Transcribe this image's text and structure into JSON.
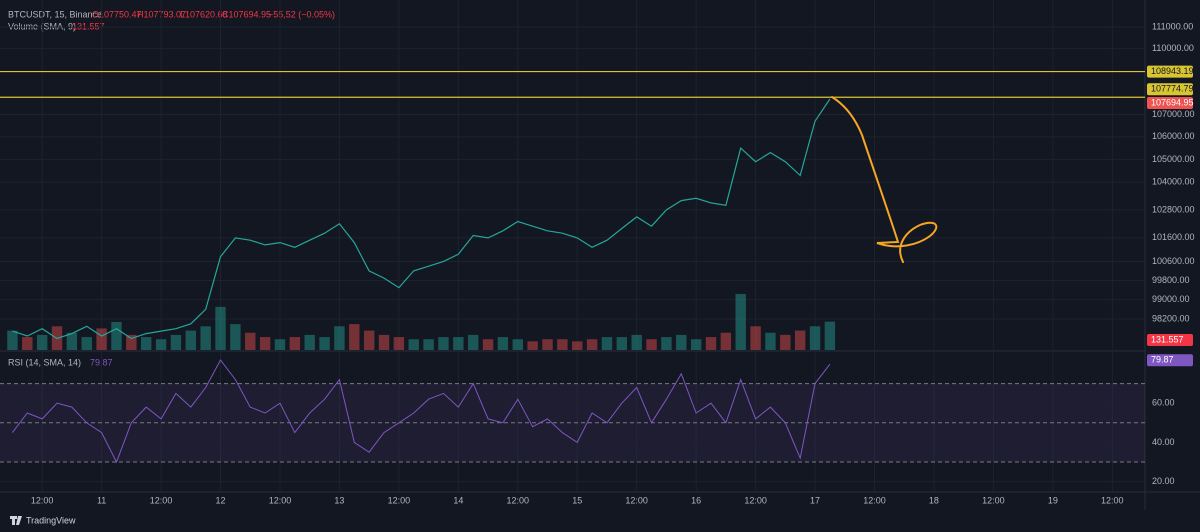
{
  "header": {
    "symbol": "BTCUSDT, 15, Binance",
    "open": "O107750.47",
    "high": "H107793.07",
    "low": "L107620.68",
    "close": "C107694.95",
    "change": "−55,52 (−0.05%)",
    "volume_label": "Volume (SMA, 9)"
  },
  "branding": "TradingView",
  "chart_data": [
    {
      "type": "line",
      "log_scale": true,
      "grid": true,
      "xlim": [
        -0.5,
        76.2
      ],
      "xticks": [
        {
          "value": 2,
          "label": "12:00"
        },
        {
          "value": 6,
          "label": "11"
        },
        {
          "value": 10,
          "label": "12:00"
        },
        {
          "value": 14,
          "label": "12"
        },
        {
          "value": 18,
          "label": "12:00"
        },
        {
          "value": 22,
          "label": "13"
        },
        {
          "value": 26,
          "label": "12:00"
        },
        {
          "value": 30,
          "label": "14"
        },
        {
          "value": 34,
          "label": "12:00"
        },
        {
          "value": 38,
          "label": "15"
        },
        {
          "value": 42,
          "label": "12:00"
        },
        {
          "value": 46,
          "label": "16"
        },
        {
          "value": 50,
          "label": "12:00"
        },
        {
          "value": 54,
          "label": "17"
        },
        {
          "value": 58,
          "label": "12:00"
        },
        {
          "value": 62,
          "label": "18"
        },
        {
          "value": 66,
          "label": "12:00"
        },
        {
          "value": 70,
          "label": "19"
        },
        {
          "value": 74,
          "label": "12:00"
        }
      ],
      "ylim": [
        96930,
        112030
      ],
      "yticks": [
        {
          "value": 111000,
          "label": "111000.00"
        },
        {
          "value": 110000,
          "label": "110000.00"
        },
        {
          "value": 107000,
          "label": "107000.00"
        },
        {
          "value": 106000,
          "label": "106000.00"
        },
        {
          "value": 105000,
          "label": "105000.00"
        },
        {
          "value": 104000,
          "label": "104000.00"
        },
        {
          "value": 102800,
          "label": "102800.00"
        },
        {
          "value": 101600,
          "label": "101600.00"
        },
        {
          "value": 100600,
          "label": "100600.00"
        },
        {
          "value": 99800,
          "label": "99800.00"
        },
        {
          "value": 99000,
          "label": "99000.00"
        },
        {
          "value": 98200,
          "label": "98200.00"
        }
      ],
      "levels": [
        108943.19,
        107774.79
      ],
      "level_color": "#d9c531",
      "y2lim": [
        0,
        1600
      ],
      "up_color": "#26a69a",
      "down_color": "#ef5350",
      "series": [
        {
          "color": "#26a69a",
          "values": [
            97700,
            97500,
            97800,
            97400,
            97600,
            97900,
            97500,
            97800,
            97400,
            97600,
            97700,
            97800,
            98000,
            98600,
            100800,
            101600,
            101500,
            101300,
            101400,
            101200,
            101500,
            101800,
            102200,
            101400,
            100200,
            99900,
            99500,
            100200,
            100400,
            100600,
            100900,
            101700,
            101600,
            101900,
            102300,
            102100,
            101900,
            101800,
            101600,
            101200,
            101500,
            102000,
            102500,
            102100,
            102800,
            103200,
            103300,
            103100,
            103000,
            105500,
            104900,
            105300,
            104900,
            104300,
            106700,
            107694.95
          ]
        },
        {
          "axis": "y2",
          "color": "#f23645",
          "values": [
            90,
            60,
            70,
            110,
            80,
            60,
            100,
            130,
            70,
            60,
            50,
            70,
            90,
            110,
            200,
            120,
            80,
            60,
            50,
            60,
            70,
            60,
            110,
            120,
            90,
            70,
            60,
            50,
            50,
            60,
            60,
            70,
            50,
            60,
            50,
            40,
            50,
            50,
            40,
            50,
            60,
            60,
            70,
            50,
            60,
            70,
            50,
            60,
            80,
            260,
            110,
            80,
            70,
            90,
            110,
            131.557
          ]
        }
      ]
    },
    {
      "type": "line",
      "title": "RSI (14, SMA, 14)",
      "grid": true,
      "xlim": [
        -0.5,
        76.2
      ],
      "ylim": [
        15.2,
        86.1
      ],
      "yticks": [
        {
          "value": 60,
          "label": "60.00"
        },
        {
          "value": 40,
          "label": "40.00"
        },
        {
          "value": 20,
          "label": "20.00"
        }
      ],
      "bands": [
        30,
        50,
        70
      ],
      "series": [
        {
          "color": "#7e57c2",
          "values": [
            45,
            55,
            52,
            60,
            58,
            50,
            45,
            30,
            50,
            58,
            52,
            65,
            58,
            68,
            82,
            72,
            58,
            55,
            60,
            45,
            55,
            62,
            72,
            40,
            35,
            45,
            50,
            55,
            62,
            65,
            58,
            70,
            52,
            50,
            62,
            48,
            52,
            45,
            40,
            55,
            50,
            60,
            68,
            50,
            62,
            75,
            55,
            60,
            50,
            72,
            52,
            58,
            50,
            32,
            70,
            79.87
          ]
        }
      ]
    }
  ]
}
